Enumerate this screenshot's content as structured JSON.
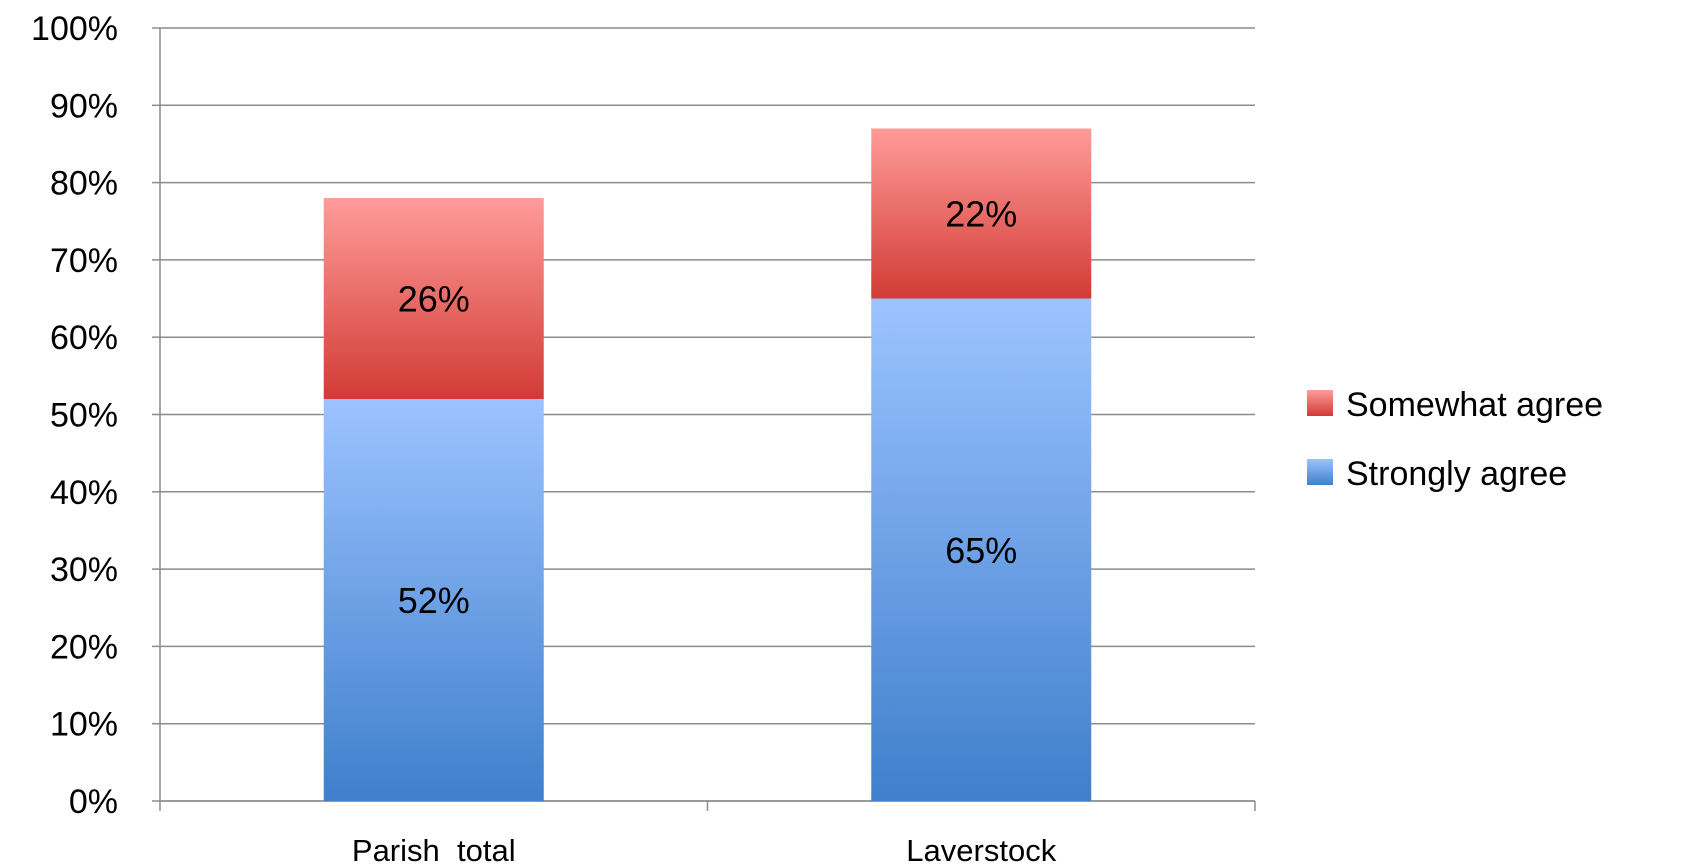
{
  "chart_data": {
    "type": "bar",
    "stacked": true,
    "categories": [
      "Parish  total",
      "Laverstock"
    ],
    "series": [
      {
        "name": "Strongly agree",
        "values": [
          52,
          65
        ],
        "labels": [
          "52%",
          "65%"
        ],
        "color": "#4a86d4"
      },
      {
        "name": "Somewhat agree",
        "values": [
          26,
          22
        ],
        "labels": [
          "26%",
          "22%"
        ],
        "color": "#d9443e"
      }
    ],
    "ylim": [
      0,
      100
    ],
    "yticks": [
      "0%",
      "10%",
      "20%",
      "30%",
      "40%",
      "50%",
      "60%",
      "70%",
      "80%",
      "90%",
      "100%"
    ],
    "grid": true,
    "legend": {
      "position": "right",
      "entries": [
        "Somewhat agree",
        "Strongly agree"
      ]
    },
    "title": "",
    "xlabel": "",
    "ylabel": ""
  }
}
